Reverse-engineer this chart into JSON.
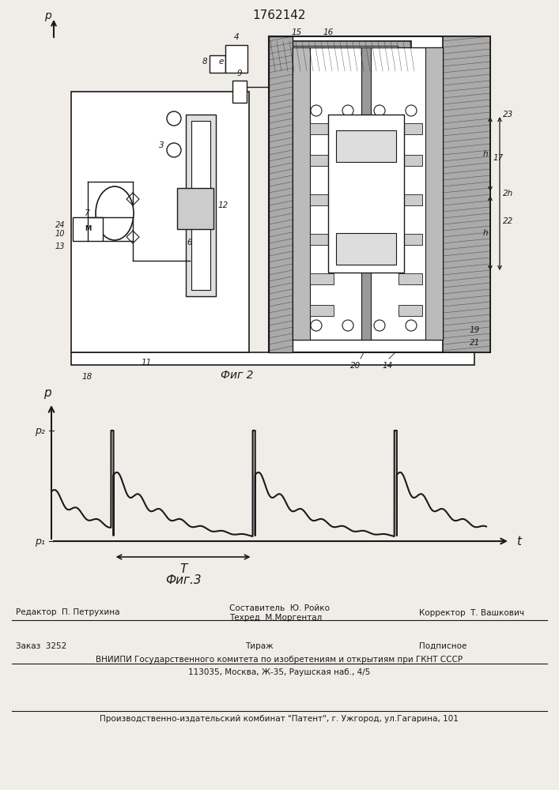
{
  "patent_number": "1762142",
  "fig2_caption": "Фиг 2",
  "fig3_caption": "Фиг.3",
  "bg_color": "#f0ede8",
  "line_color": "#1a1a1a",
  "sestavitel": "Составитель  Ю. Ройко",
  "tekhred": "Техред  М.Моргентал",
  "redaktor": "Редактор  П. Петрухина",
  "korrektor": "Корректор  Т. Вашкович",
  "zakaz": "Заказ  3252",
  "tirazh": "Тираж",
  "podpisnoe": "Подписное",
  "vniipи_line1": "ВНИИПИ Государственного комитета по изобретениям и открытиям при ГКНТ СССР",
  "vniipи_line2": "113035, Москва, Ж-35, Раушская наб., 4/5",
  "production": "Производственно-издательский комбинат \"Патент\", г. Ужгород, ул.Гагарина, 101"
}
